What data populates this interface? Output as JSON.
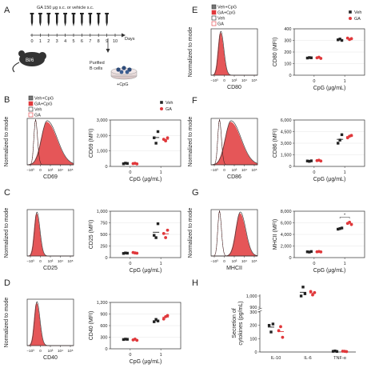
{
  "colors": {
    "veh": "#222222",
    "ga": "#e0383b",
    "hist_fill": "#e0383b",
    "hist_stroke": "#333333",
    "axis": "#333333",
    "grid": "#e6e6e6"
  },
  "schematic": {
    "panel": "A",
    "dose_text": "GA 150 μg s.c. or vehicle s.c.",
    "days_label": "Days",
    "day_ticks": [
      "0",
      "1",
      "2",
      "3",
      "4",
      "5",
      "6",
      "7",
      "8",
      "9",
      "10"
    ],
    "mouse_label": "Bl/6",
    "purified_label": "Purified\nB cells",
    "cpg_label": "+CpG"
  },
  "histogram_common": {
    "ylabel": "Normalized to mode",
    "ticks": [
      "−10³",
      "0",
      "10³",
      "10⁴",
      "10⁵"
    ]
  },
  "legend": {
    "items": [
      {
        "label": "Veh+CpG",
        "style": "fill-gray"
      },
      {
        "label": "GA+CpG",
        "style": "fill-red"
      },
      {
        "label": "Veh",
        "style": "line-black"
      },
      {
        "label": "GA",
        "style": "line-red"
      }
    ]
  },
  "chart_legend": {
    "items": [
      {
        "label": "Veh",
        "color": "#222222",
        "marker": "square"
      },
      {
        "label": "GA",
        "color": "#e0383b",
        "marker": "circle"
      }
    ]
  },
  "chart_data": [
    {
      "panel": "B",
      "type": "scatter",
      "hist_xlabel": "CD69",
      "ylabel": "CD69 (MFI)",
      "xlabel": "CpG (μg/mL)",
      "categories": [
        "0",
        "1"
      ],
      "yticks": [
        "0",
        "1,000",
        "2,000",
        "3,000"
      ],
      "ylim": [
        0,
        3000
      ],
      "series": [
        {
          "name": "Veh",
          "values": [
            [
              170,
              210,
              190
            ],
            [
              1850,
              1500,
              2250
            ]
          ]
        },
        {
          "name": "GA",
          "values": [
            [
              180,
              200,
              160
            ],
            [
              1750,
              1650,
              1850
            ]
          ]
        }
      ]
    },
    {
      "panel": "C",
      "type": "scatter",
      "hist_xlabel": "CD25",
      "ylabel": "CD25 (MFI)",
      "xlabel": "CpG (μg/mL)",
      "categories": [
        "0",
        "1"
      ],
      "yticks": [
        "0",
        "250",
        "500",
        "750",
        "1,000"
      ],
      "ylim": [
        0,
        1000
      ],
      "series": [
        {
          "name": "Veh",
          "values": [
            [
              90,
              100,
              95
            ],
            [
              480,
              430,
              730
            ]
          ]
        },
        {
          "name": "GA",
          "values": [
            [
              110,
              100,
              95
            ],
            [
              520,
              430,
              590
            ]
          ]
        }
      ]
    },
    {
      "panel": "D",
      "type": "scatter",
      "hist_xlabel": "CD40",
      "ylabel": "CD40 (MFI)",
      "xlabel": "CpG (μg/mL)",
      "categories": [
        "0",
        "1"
      ],
      "yticks": [
        "0",
        "300",
        "600",
        "900",
        "1,200"
      ],
      "ylim": [
        0,
        1200
      ],
      "series": [
        {
          "name": "Veh",
          "values": [
            [
              240,
              250,
              245
            ],
            [
              700,
              760,
              720
            ]
          ]
        },
        {
          "name": "GA",
          "values": [
            [
              230,
              250,
              220
            ],
            [
              770,
              830,
              860
            ]
          ]
        }
      ]
    },
    {
      "panel": "E",
      "type": "scatter",
      "hist_xlabel": "CD80",
      "ylabel": "CD80 (MFI)",
      "xlabel": "CpG (μg/mL)",
      "categories": [
        "0",
        "1"
      ],
      "yticks": [
        "0",
        "100",
        "200",
        "300",
        "400"
      ],
      "ylim": [
        0,
        400
      ],
      "series": [
        {
          "name": "Veh",
          "values": [
            [
              148,
              152,
              150
            ],
            [
              305,
              312,
              300
            ]
          ]
        },
        {
          "name": "GA",
          "values": [
            [
              150,
              155,
              145
            ],
            [
              320,
              308,
              315
            ]
          ]
        }
      ]
    },
    {
      "panel": "F",
      "type": "scatter",
      "hist_xlabel": "CD86",
      "ylabel": "CD86 (MFI)",
      "xlabel": "CpG (μg/mL)",
      "categories": [
        "0",
        "1"
      ],
      "yticks": [
        "0",
        "1,500",
        "3,000",
        "4,500",
        "6,000"
      ],
      "ylim": [
        0,
        6000
      ],
      "series": [
        {
          "name": "Veh",
          "values": [
            [
              700,
              650,
              720
            ],
            [
              3000,
              3400,
              4100
            ]
          ]
        },
        {
          "name": "GA",
          "values": [
            [
              750,
              800,
              700
            ],
            [
              3700,
              3900,
              4000
            ]
          ]
        }
      ]
    },
    {
      "panel": "G",
      "type": "scatter",
      "hist_xlabel": "MHCII",
      "ylabel": "MHCII (MFI)",
      "xlabel": "CpG (μg/mL)",
      "categories": [
        "0",
        "1"
      ],
      "yticks": [
        "0",
        "2,000",
        "4,000",
        "6,000",
        "8,000"
      ],
      "ylim": [
        0,
        8000
      ],
      "significance": "*",
      "series": [
        {
          "name": "Veh",
          "values": [
            [
              1000,
              950,
              1050
            ],
            [
              4900,
              5000,
              5100
            ]
          ]
        },
        {
          "name": "GA",
          "values": [
            [
              1000,
              1050,
              980
            ],
            [
              5900,
              6100,
              5700
            ]
          ]
        }
      ]
    },
    {
      "panel": "H",
      "type": "scatter",
      "ylabel": "Secretion of\ncytokines (pg/mL)",
      "categories": [
        "IL-10",
        "IL-6",
        "TNF-α"
      ],
      "yticks": [
        "0",
        "100",
        "200",
        "300",
        "900",
        "1,000"
      ],
      "series": [
        {
          "name": "Veh",
          "values": [
            [
              200,
              150,
              210
            ],
            [
              1000,
              1080,
              1020
            ],
            [
              5,
              8,
              4
            ]
          ]
        },
        {
          "name": "GA",
          "values": [
            [
              160,
              190,
              110
            ],
            [
              1040,
              1010,
              1030
            ],
            [
              6,
              5,
              3
            ]
          ]
        }
      ]
    }
  ]
}
